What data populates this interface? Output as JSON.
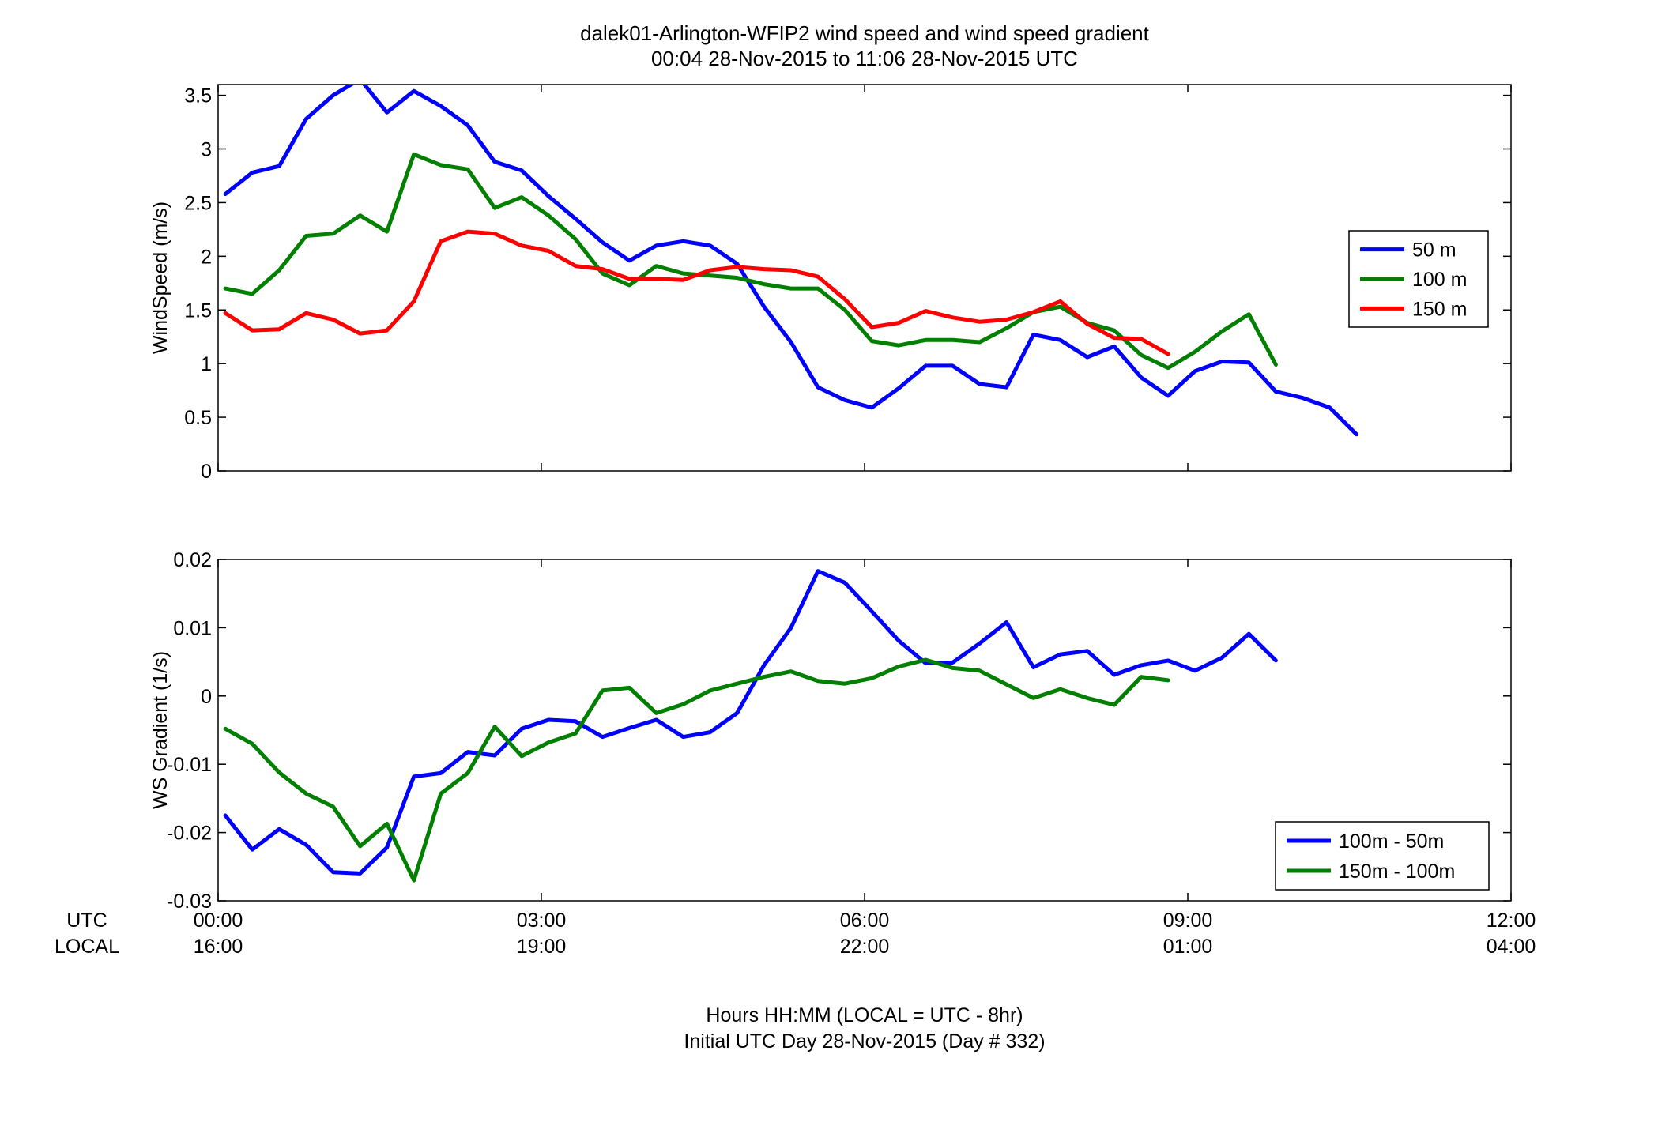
{
  "figure": {
    "title_line1": "dalek01-Arlington-WFIP2  wind speed and wind speed gradient",
    "title_line2": "00:04 28-Nov-2015 to 11:06 28-Nov-2015  UTC",
    "utc_label": "UTC",
    "local_label": "LOCAL",
    "xaxis_line1": "Hours HH:MM  (LOCAL = UTC - 8hr)",
    "xaxis_line2": "Initial UTC Day 28-Nov-2015 (Day # 332)",
    "utc_ticks": [
      "00:00",
      "03:00",
      "06:00",
      "09:00",
      "12:00"
    ],
    "local_ticks": [
      "16:00",
      "19:00",
      "22:00",
      "01:00",
      "04:00"
    ]
  },
  "chart_data": [
    {
      "type": "line",
      "ylabel": "WindSpeed (m/s)",
      "xlim": [
        0,
        12
      ],
      "ylim": [
        0,
        3.6
      ],
      "yticks": [
        0,
        0.5,
        1,
        1.5,
        2,
        2.5,
        3,
        3.5
      ],
      "ytick_labels": [
        "0",
        "0.5",
        "1",
        "1.5",
        "2",
        "2.5",
        "3",
        "3.5"
      ],
      "xtick_values": [
        0,
        3,
        6,
        9,
        12
      ],
      "legend_position": "right",
      "series": [
        {
          "name": "50 m",
          "color": "#0000ff",
          "x": [
            0.067,
            0.317,
            0.567,
            0.817,
            1.067,
            1.317,
            1.567,
            1.817,
            2.067,
            2.317,
            2.567,
            2.817,
            3.067,
            3.317,
            3.567,
            3.817,
            4.067,
            4.317,
            4.567,
            4.817,
            5.067,
            5.317,
            5.567,
            5.817,
            6.067,
            6.317,
            6.567,
            6.817,
            7.067,
            7.317,
            7.567,
            7.817,
            8.067,
            8.317,
            8.567,
            8.817,
            9.067,
            9.317,
            9.567,
            9.817,
            10.067,
            10.317,
            10.567
          ],
          "y": [
            2.58,
            2.78,
            2.84,
            3.28,
            3.5,
            3.65,
            3.34,
            3.54,
            3.4,
            3.22,
            2.88,
            2.8,
            2.56,
            2.35,
            2.13,
            1.96,
            2.1,
            2.14,
            2.1,
            1.93,
            1.53,
            1.2,
            0.78,
            0.66,
            0.59,
            0.77,
            0.98,
            0.98,
            0.81,
            0.78,
            1.27,
            1.22,
            1.06,
            1.16,
            0.87,
            0.7,
            0.93,
            1.02,
            1.01,
            0.74,
            0.68,
            0.59,
            0.34
          ]
        },
        {
          "name": "100 m",
          "color": "#007f00",
          "x": [
            0.067,
            0.317,
            0.567,
            0.817,
            1.067,
            1.317,
            1.567,
            1.817,
            2.067,
            2.317,
            2.567,
            2.817,
            3.067,
            3.317,
            3.567,
            3.817,
            4.067,
            4.317,
            4.567,
            4.817,
            5.067,
            5.317,
            5.567,
            5.817,
            6.067,
            6.317,
            6.567,
            6.817,
            7.067,
            7.317,
            7.567,
            7.817,
            8.067,
            8.317,
            8.567,
            8.817,
            9.067,
            9.317,
            9.567,
            9.817
          ],
          "y": [
            1.7,
            1.65,
            1.87,
            2.19,
            2.21,
            2.38,
            2.23,
            2.95,
            2.85,
            2.81,
            2.45,
            2.55,
            2.38,
            2.16,
            1.84,
            1.73,
            1.91,
            1.84,
            1.82,
            1.8,
            1.74,
            1.7,
            1.7,
            1.5,
            1.21,
            1.17,
            1.22,
            1.22,
            1.2,
            1.33,
            1.48,
            1.53,
            1.38,
            1.31,
            1.08,
            0.96,
            1.11,
            1.3,
            1.46,
            0.99
          ]
        },
        {
          "name": "150 m",
          "color": "#ff0000",
          "x": [
            0.067,
            0.317,
            0.567,
            0.817,
            1.067,
            1.317,
            1.567,
            1.817,
            2.067,
            2.317,
            2.567,
            2.817,
            3.067,
            3.317,
            3.567,
            3.817,
            4.067,
            4.317,
            4.567,
            4.817,
            5.067,
            5.317,
            5.567,
            5.817,
            6.067,
            6.317,
            6.567,
            6.817,
            7.067,
            7.317,
            7.567,
            7.817,
            8.067,
            8.317,
            8.567,
            8.817
          ],
          "y": [
            1.47,
            1.31,
            1.32,
            1.47,
            1.41,
            1.28,
            1.31,
            1.58,
            2.14,
            2.23,
            2.21,
            2.1,
            2.05,
            1.91,
            1.88,
            1.79,
            1.79,
            1.78,
            1.87,
            1.9,
            1.88,
            1.87,
            1.81,
            1.6,
            1.34,
            1.38,
            1.49,
            1.43,
            1.39,
            1.41,
            1.48,
            1.58,
            1.37,
            1.24,
            1.23,
            1.09
          ]
        }
      ]
    },
    {
      "type": "line",
      "ylabel": "WS Gradient (1/s)",
      "xlim": [
        0,
        12
      ],
      "ylim": [
        -0.03,
        0.02
      ],
      "yticks": [
        -0.03,
        -0.02,
        -0.01,
        0,
        0.01,
        0.02
      ],
      "ytick_labels": [
        "-0.03",
        "-0.02",
        "-0.01",
        "0",
        "0.01",
        "0.02"
      ],
      "xtick_values": [
        0,
        3,
        6,
        9,
        12
      ],
      "legend_position": "bottom-right",
      "series": [
        {
          "name": "100m - 50m",
          "color": "#0000ff",
          "x": [
            0.067,
            0.317,
            0.567,
            0.817,
            1.067,
            1.317,
            1.567,
            1.817,
            2.067,
            2.317,
            2.567,
            2.817,
            3.067,
            3.317,
            3.567,
            3.817,
            4.067,
            4.317,
            4.567,
            4.817,
            5.067,
            5.317,
            5.567,
            5.817,
            6.067,
            6.317,
            6.567,
            6.817,
            7.067,
            7.317,
            7.567,
            7.817,
            8.067,
            8.317,
            8.567,
            8.817,
            9.067,
            9.317,
            9.567,
            9.817
          ],
          "y": [
            -0.0175,
            -0.0225,
            -0.0195,
            -0.0218,
            -0.0258,
            -0.026,
            -0.0222,
            -0.0118,
            -0.0113,
            -0.0082,
            -0.0087,
            -0.0048,
            -0.0035,
            -0.0037,
            -0.006,
            -0.0047,
            -0.0035,
            -0.006,
            -0.0053,
            -0.0025,
            0.0045,
            0.01,
            0.0183,
            0.0166,
            0.0124,
            0.0081,
            0.0048,
            0.0049,
            0.0077,
            0.0108,
            0.0042,
            0.0061,
            0.0066,
            0.0031,
            0.0045,
            0.0052,
            0.0037,
            0.0056,
            0.0091,
            0.0052
          ]
        },
        {
          "name": "150m - 100m",
          "color": "#007f00",
          "x": [
            0.067,
            0.317,
            0.567,
            0.817,
            1.067,
            1.317,
            1.567,
            1.817,
            2.067,
            2.317,
            2.567,
            2.817,
            3.067,
            3.317,
            3.567,
            3.817,
            4.067,
            4.317,
            4.567,
            4.817,
            5.067,
            5.317,
            5.567,
            5.817,
            6.067,
            6.317,
            6.567,
            6.817,
            7.067,
            7.317,
            7.567,
            7.817,
            8.067,
            8.317,
            8.567,
            8.817
          ],
          "y": [
            -0.0048,
            -0.007,
            -0.0112,
            -0.0143,
            -0.0162,
            -0.022,
            -0.0187,
            -0.027,
            -0.0143,
            -0.0113,
            -0.0045,
            -0.0088,
            -0.0068,
            -0.0055,
            0.0008,
            0.0012,
            -0.0025,
            -0.0012,
            0.0008,
            0.0018,
            0.0028,
            0.0036,
            0.0022,
            0.0018,
            0.0026,
            0.0043,
            0.0053,
            0.0041,
            0.0037,
            0.0017,
            -0.0003,
            0.001,
            -0.0003,
            -0.0013,
            0.0028,
            0.0023
          ]
        }
      ]
    }
  ]
}
